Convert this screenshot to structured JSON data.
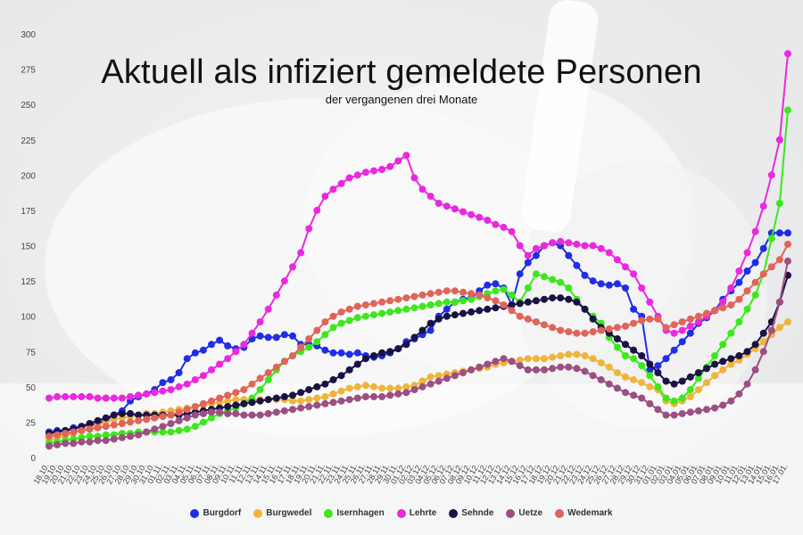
{
  "chart_data": {
    "type": "line",
    "title": "Aktuell als infiziert gemeldete Personen",
    "subtitle": "der vergangenen drei Monate",
    "ylim": [
      0,
      300
    ],
    "yticks": [
      0,
      25,
      50,
      75,
      100,
      125,
      150,
      175,
      200,
      225,
      250,
      275,
      300
    ],
    "grid": false,
    "legend_position": "bottom",
    "x": [
      "18.10.",
      "19.10.",
      "20.10.",
      "21.10.",
      "22.10.",
      "23.10.",
      "24.10.",
      "25.10.",
      "26.10.",
      "27.10.",
      "28.10.",
      "29.10.",
      "30.10.",
      "31.10.",
      "01.11.",
      "02.11.",
      "03.11.",
      "04.11.",
      "05.11.",
      "06.11.",
      "07.11.",
      "08.11.",
      "09.11.",
      "10.11.",
      "11.11.",
      "12.11.",
      "13.11.",
      "14.11.",
      "15.11.",
      "16.11.",
      "17.11.",
      "18.11.",
      "19.11.",
      "20.11.",
      "21.11.",
      "22.11.",
      "23.11.",
      "24.11.",
      "25.11.",
      "26.11.",
      "27.11.",
      "28.11.",
      "29.11.",
      "30.11.",
      "01.12.",
      "02.12.",
      "03.12.",
      "04.12.",
      "05.12.",
      "06.12.",
      "07.12.",
      "08.12.",
      "09.12.",
      "10.12.",
      "11.12.",
      "12.12.",
      "13.12.",
      "14.12.",
      "15.12.",
      "16.12.",
      "17.12.",
      "18.12.",
      "19.12.",
      "20.12.",
      "21.12.",
      "22.12.",
      "23.12.",
      "24.12.",
      "25.12.",
      "26.12.",
      "27.12.",
      "28.12.",
      "29.12.",
      "30.12.",
      "31.12.",
      "01.01.",
      "02.01.",
      "03.01.",
      "04.01.",
      "05.01.",
      "06.01.",
      "07.01.",
      "08.01.",
      "09.01.",
      "10.01.",
      "11.01.",
      "12.01.",
      "13.01.",
      "14.01.",
      "15.01.",
      "16.01.",
      "17.01."
    ],
    "series": [
      {
        "name": "Burgdorf",
        "color": "#1f2ee6",
        "values": [
          18,
          19,
          19,
          21,
          22,
          23,
          24,
          26,
          30,
          33,
          40,
          43,
          45,
          48,
          53,
          55,
          60,
          70,
          74,
          76,
          80,
          83,
          79,
          77,
          78,
          84,
          86,
          85,
          85,
          87,
          86,
          80,
          80,
          79,
          76,
          74,
          74,
          73,
          74,
          72,
          71,
          72,
          74,
          77,
          82,
          84,
          87,
          90,
          100,
          105,
          110,
          112,
          113,
          118,
          122,
          123,
          120,
          108,
          130,
          138,
          143,
          150,
          152,
          150,
          143,
          136,
          129,
          125,
          123,
          122,
          123,
          120,
          105,
          100,
          62,
          65,
          70,
          76,
          82,
          88,
          95,
          99,
          104,
          112,
          118,
          124,
          132,
          138,
          148,
          159,
          159,
          159
        ]
      },
      {
        "name": "Burgwedel",
        "color": "#f0b43c",
        "values": [
          12,
          14,
          15,
          17,
          19,
          21,
          23,
          25,
          27,
          28,
          29,
          30,
          31,
          31,
          32,
          33,
          34,
          35,
          36,
          37,
          38,
          39,
          40,
          41,
          41,
          41,
          41,
          41,
          41,
          41,
          40,
          40,
          41,
          42,
          43,
          45,
          47,
          49,
          50,
          51,
          50,
          49,
          49,
          49,
          50,
          51,
          54,
          57,
          58,
          59,
          60,
          61,
          62,
          63,
          64,
          66,
          67,
          68,
          69,
          70,
          70,
          70,
          71,
          72,
          73,
          73,
          72,
          70,
          67,
          64,
          60,
          57,
          55,
          53,
          50,
          48,
          40,
          38,
          40,
          43,
          48,
          53,
          58,
          62,
          66,
          69,
          73,
          77,
          82,
          87,
          92,
          96
        ]
      },
      {
        "name": "Isernhagen",
        "color": "#3ce81c",
        "values": [
          10,
          11,
          12,
          13,
          14,
          15,
          15,
          16,
          16,
          17,
          17,
          18,
          18,
          18,
          18,
          18,
          19,
          20,
          22,
          25,
          28,
          31,
          33,
          35,
          38,
          42,
          48,
          55,
          62,
          68,
          72,
          75,
          78,
          82,
          87,
          92,
          95,
          97,
          99,
          100,
          101,
          102,
          103,
          104,
          105,
          106,
          107,
          108,
          109,
          110,
          110,
          111,
          112,
          114,
          116,
          118,
          119,
          115,
          110,
          120,
          130,
          128,
          126,
          124,
          120,
          112,
          105,
          100,
          95,
          85,
          78,
          72,
          70,
          65,
          58,
          50,
          42,
          40,
          42,
          48,
          56,
          64,
          72,
          80,
          88,
          96,
          105,
          115,
          130,
          155,
          180,
          246
        ]
      },
      {
        "name": "Lehrte",
        "color": "#ea28e0",
        "values": [
          42,
          43,
          43,
          43,
          43,
          43,
          42,
          42,
          42,
          42,
          43,
          44,
          45,
          46,
          47,
          48,
          50,
          52,
          55,
          58,
          62,
          66,
          70,
          75,
          80,
          88,
          96,
          105,
          115,
          125,
          135,
          145,
          162,
          175,
          185,
          190,
          194,
          198,
          200,
          202,
          203,
          204,
          206,
          210,
          214,
          198,
          190,
          185,
          180,
          178,
          176,
          174,
          172,
          170,
          168,
          165,
          163,
          160,
          150,
          143,
          148,
          150,
          152,
          153,
          152,
          151,
          150,
          150,
          148,
          145,
          140,
          135,
          130,
          120,
          110,
          100,
          90,
          88,
          90,
          93,
          96,
          100,
          104,
          110,
          120,
          132,
          145,
          160,
          178,
          200,
          225,
          286
        ]
      },
      {
        "name": "Sehnde",
        "color": "#1a1245",
        "values": [
          17,
          18,
          19,
          20,
          22,
          24,
          26,
          28,
          30,
          31,
          31,
          30,
          30,
          30,
          30,
          30,
          30,
          31,
          32,
          33,
          34,
          35,
          36,
          37,
          38,
          39,
          40,
          41,
          42,
          43,
          44,
          46,
          48,
          50,
          52,
          55,
          58,
          62,
          66,
          70,
          72,
          74,
          75,
          77,
          80,
          85,
          90,
          95,
          98,
          100,
          101,
          102,
          103,
          104,
          105,
          106,
          107,
          108,
          109,
          110,
          111,
          112,
          113,
          113,
          112,
          110,
          105,
          98,
          92,
          88,
          84,
          80,
          76,
          72,
          66,
          60,
          54,
          52,
          54,
          57,
          60,
          63,
          66,
          68,
          70,
          72,
          75,
          80,
          88,
          96,
          110,
          129
        ]
      },
      {
        "name": "Uetze",
        "color": "#9c4f82",
        "values": [
          8,
          9,
          10,
          10,
          11,
          11,
          12,
          12,
          13,
          14,
          15,
          16,
          18,
          20,
          22,
          24,
          26,
          28,
          30,
          31,
          32,
          32,
          31,
          31,
          30,
          30,
          30,
          31,
          32,
          33,
          34,
          35,
          36,
          37,
          38,
          39,
          40,
          41,
          42,
          43,
          43,
          43,
          44,
          45,
          46,
          48,
          50,
          52,
          54,
          56,
          58,
          60,
          62,
          64,
          66,
          68,
          70,
          68,
          65,
          62,
          62,
          62,
          63,
          64,
          64,
          63,
          61,
          58,
          55,
          52,
          49,
          46,
          44,
          42,
          38,
          34,
          30,
          30,
          31,
          32,
          33,
          34,
          35,
          37,
          40,
          45,
          52,
          62,
          75,
          90,
          110,
          139
        ]
      },
      {
        "name": "Wedemark",
        "color": "#e0645a",
        "values": [
          15,
          16,
          17,
          18,
          19,
          20,
          21,
          22,
          23,
          24,
          25,
          26,
          27,
          28,
          29,
          30,
          32,
          34,
          36,
          38,
          40,
          42,
          44,
          46,
          48,
          52,
          56,
          60,
          64,
          68,
          72,
          78,
          84,
          90,
          96,
          100,
          103,
          105,
          107,
          108,
          109,
          110,
          111,
          112,
          113,
          114,
          115,
          116,
          117,
          118,
          118,
          117,
          116,
          115,
          113,
          111,
          108,
          104,
          100,
          98,
          96,
          94,
          92,
          90,
          89,
          88,
          88,
          89,
          90,
          91,
          92,
          93,
          95,
          97,
          98,
          98,
          92,
          94,
          96,
          98,
          100,
          102,
          104,
          106,
          108,
          112,
          118,
          124,
          130,
          135,
          140,
          151
        ]
      }
    ]
  }
}
